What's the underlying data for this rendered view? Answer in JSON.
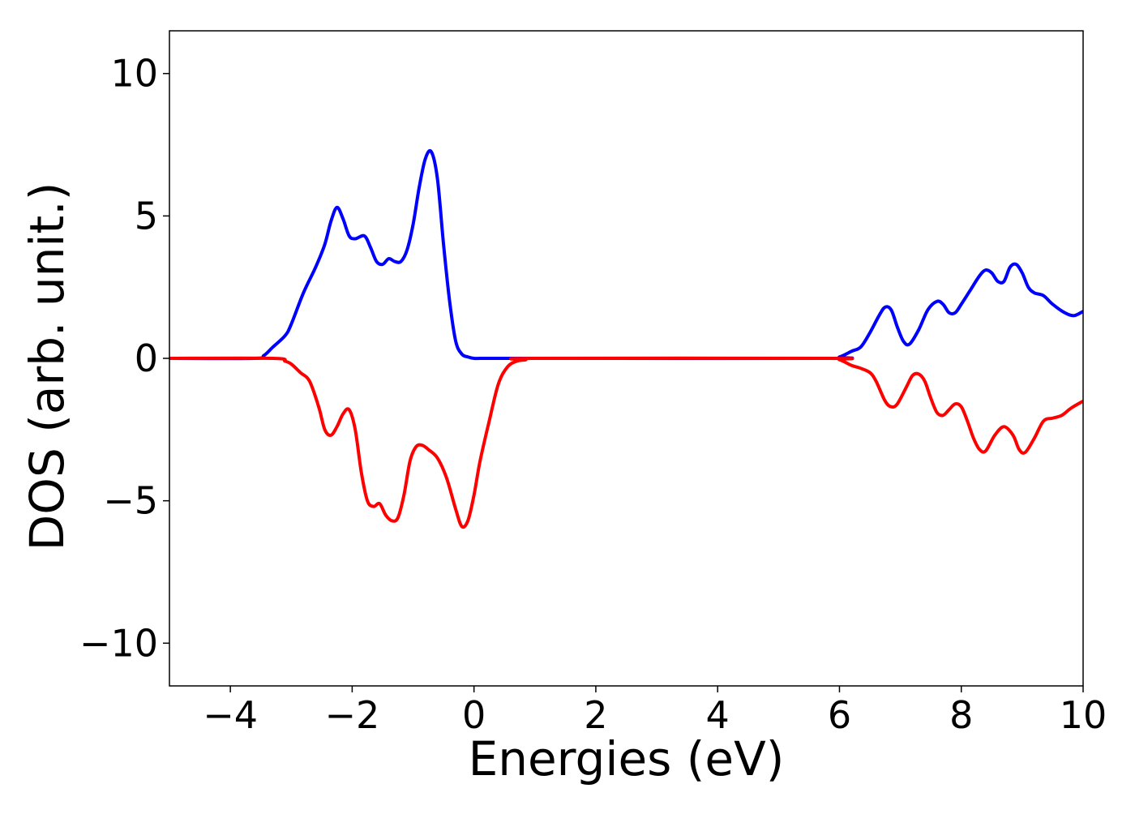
{
  "chart_data": {
    "type": "line",
    "title": "",
    "xlabel": "Energies (eV)",
    "ylabel": "DOS (arb. unit.)",
    "xlim": [
      -5,
      10
    ],
    "ylim": [
      -11.5,
      11.5
    ],
    "grid": false,
    "legend": "none",
    "x_ticks": [
      {
        "value": -4,
        "label": "−4"
      },
      {
        "value": -2,
        "label": "−2"
      },
      {
        "value": 0,
        "label": "0"
      },
      {
        "value": 2,
        "label": "2"
      },
      {
        "value": 4,
        "label": "4"
      },
      {
        "value": 6,
        "label": "6"
      },
      {
        "value": 8,
        "label": "8"
      },
      {
        "value": 10,
        "label": "10"
      }
    ],
    "y_ticks": [
      {
        "value": -10,
        "label": "−10"
      },
      {
        "value": -5,
        "label": "−5"
      },
      {
        "value": 0,
        "label": "0"
      },
      {
        "value": 5,
        "label": "5"
      },
      {
        "value": 10,
        "label": "10"
      }
    ],
    "series": [
      {
        "color": "#0000ff",
        "x": [
          -5.0,
          -3.6,
          -3.45,
          -3.3,
          -3.1,
          -3.0,
          -2.8,
          -2.6,
          -2.45,
          -2.35,
          -2.25,
          -2.15,
          -2.05,
          -1.95,
          -1.8,
          -1.7,
          -1.6,
          -1.5,
          -1.4,
          -1.3,
          -1.2,
          -1.1,
          -1.0,
          -0.9,
          -0.8,
          -0.7,
          -0.6,
          -0.5,
          -0.4,
          -0.3,
          -0.2,
          -0.1,
          0.0,
          0.1,
          0.3,
          1.0,
          5.8,
          6.0,
          6.2,
          6.35,
          6.5,
          6.65,
          6.75,
          6.85,
          6.95,
          7.05,
          7.15,
          7.3,
          7.45,
          7.6,
          7.7,
          7.8,
          7.9,
          8.0,
          8.15,
          8.3,
          8.4,
          8.5,
          8.6,
          8.7,
          8.8,
          8.9,
          9.0,
          9.1,
          9.2,
          9.35,
          9.5,
          9.7,
          9.85,
          10.0
        ],
        "values": [
          0.0,
          0.0,
          0.1,
          0.4,
          0.8,
          1.2,
          2.3,
          3.2,
          4.0,
          4.8,
          5.3,
          4.9,
          4.3,
          4.2,
          4.3,
          3.9,
          3.4,
          3.3,
          3.5,
          3.4,
          3.4,
          3.8,
          4.7,
          6.0,
          7.0,
          7.25,
          6.3,
          4.0,
          2.0,
          0.6,
          0.15,
          0.05,
          0.0,
          0.0,
          0.0,
          0.0,
          0.0,
          0.05,
          0.25,
          0.4,
          0.9,
          1.5,
          1.8,
          1.7,
          1.1,
          0.6,
          0.5,
          1.0,
          1.7,
          2.0,
          1.9,
          1.6,
          1.6,
          1.9,
          2.4,
          2.9,
          3.1,
          3.0,
          2.7,
          2.7,
          3.2,
          3.3,
          3.0,
          2.5,
          2.3,
          2.2,
          1.9,
          1.6,
          1.5,
          1.65
        ]
      },
      {
        "color": "#ff0000",
        "x": [
          -5.0,
          -3.3,
          -3.1,
          -3.0,
          -2.85,
          -2.7,
          -2.55,
          -2.45,
          -2.35,
          -2.25,
          -2.15,
          -2.05,
          -1.95,
          -1.85,
          -1.75,
          -1.65,
          -1.55,
          -1.45,
          -1.35,
          -1.25,
          -1.15,
          -1.05,
          -0.95,
          -0.85,
          -0.75,
          -0.6,
          -0.45,
          -0.3,
          -0.2,
          -0.1,
          0.0,
          0.1,
          0.25,
          0.4,
          0.55,
          0.7,
          0.85,
          1.0,
          5.8,
          6.0,
          6.2,
          6.35,
          6.5,
          6.6,
          6.75,
          6.85,
          6.95,
          7.1,
          7.2,
          7.3,
          7.4,
          7.5,
          7.6,
          7.7,
          7.8,
          7.9,
          8.0,
          8.1,
          8.2,
          8.3,
          8.4,
          8.55,
          8.7,
          8.85,
          8.95,
          9.05,
          9.2,
          9.35,
          9.5,
          9.65,
          9.8,
          10.0
        ],
        "values": [
          0.0,
          0.0,
          -0.1,
          -0.2,
          -0.5,
          -0.8,
          -1.7,
          -2.5,
          -2.7,
          -2.4,
          -1.95,
          -1.8,
          -2.5,
          -4.0,
          -5.0,
          -5.2,
          -5.1,
          -5.5,
          -5.7,
          -5.6,
          -4.8,
          -3.6,
          -3.1,
          -3.05,
          -3.2,
          -3.5,
          -4.2,
          -5.3,
          -5.9,
          -5.7,
          -4.8,
          -3.6,
          -2.2,
          -0.9,
          -0.3,
          -0.1,
          -0.05,
          0.0,
          0.0,
          -0.05,
          -0.25,
          -0.35,
          -0.5,
          -0.8,
          -1.5,
          -1.7,
          -1.6,
          -1.0,
          -0.6,
          -0.55,
          -0.8,
          -1.4,
          -1.9,
          -2.0,
          -1.8,
          -1.6,
          -1.7,
          -2.2,
          -2.8,
          -3.2,
          -3.25,
          -2.7,
          -2.4,
          -2.7,
          -3.2,
          -3.3,
          -2.8,
          -2.2,
          -2.1,
          -2.0,
          -1.75,
          -1.5
        ]
      }
    ]
  }
}
